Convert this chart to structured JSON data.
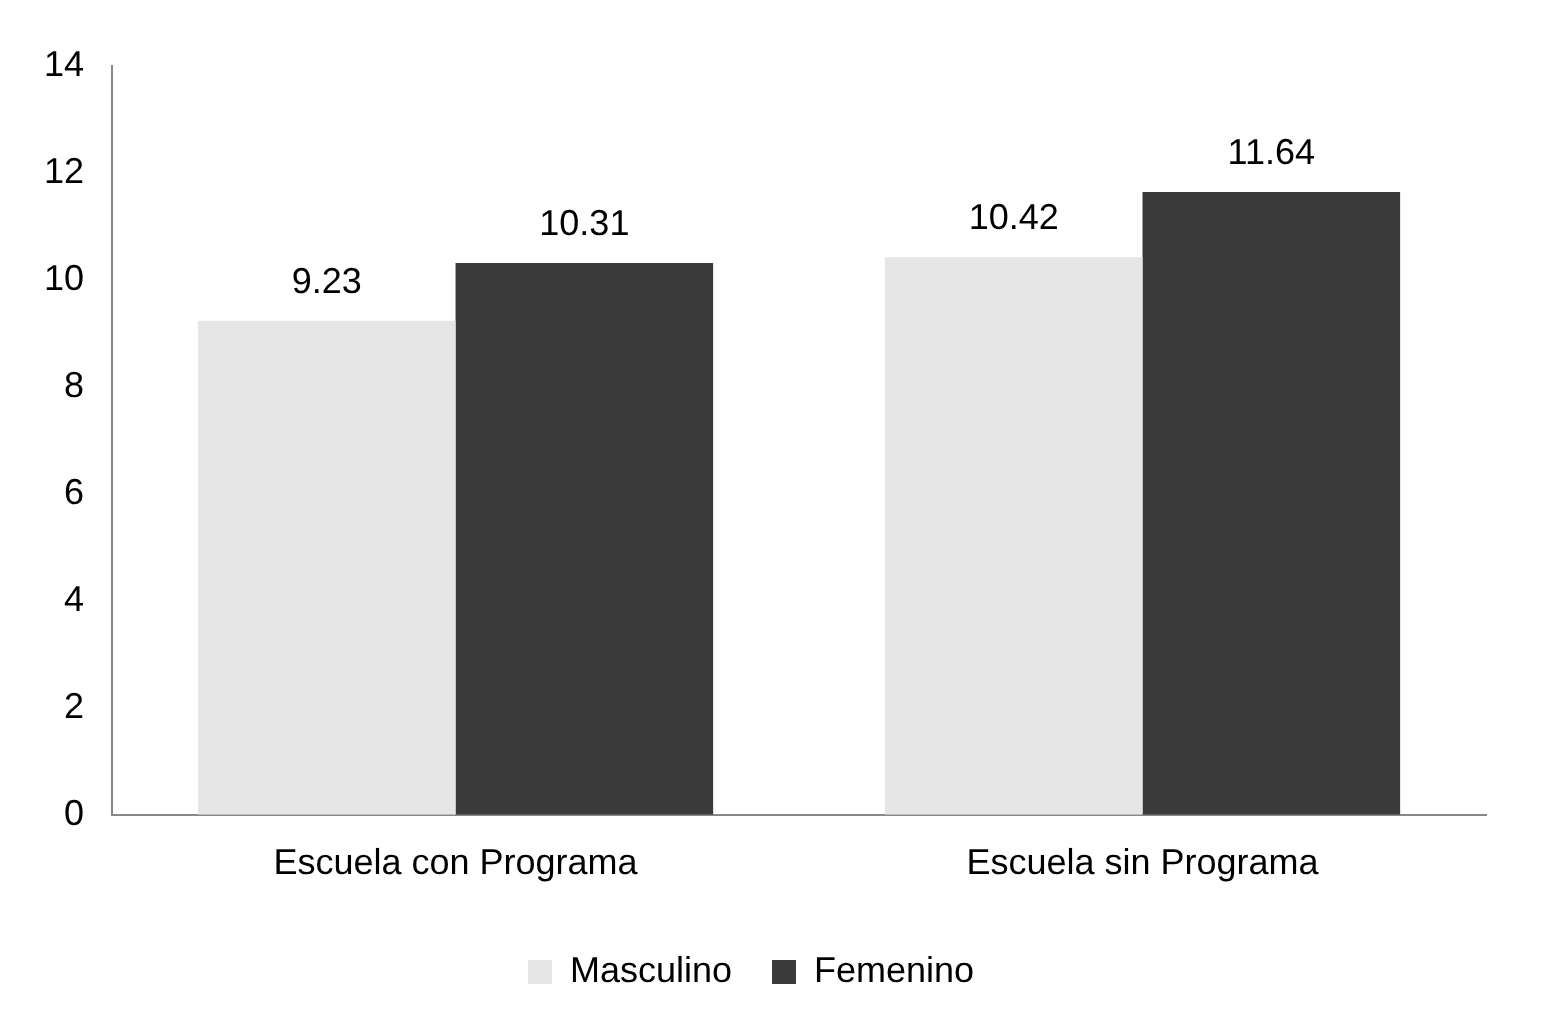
{
  "chart_data": {
    "type": "bar",
    "categories": [
      "Escuela con Programa",
      "Escuela sin Programa"
    ],
    "series": [
      {
        "name": "Masculino",
        "color": "#e6e6e6",
        "values": [
          9.23,
          10.42
        ]
      },
      {
        "name": "Femenino",
        "color": "#3a3a3a",
        "values": [
          10.31,
          11.64
        ]
      }
    ],
    "ylim": [
      0,
      14
    ],
    "yticks": [
      0,
      2,
      4,
      6,
      8,
      10,
      12,
      14
    ],
    "grid": false,
    "legend": "bottom",
    "data_labels": true
  }
}
